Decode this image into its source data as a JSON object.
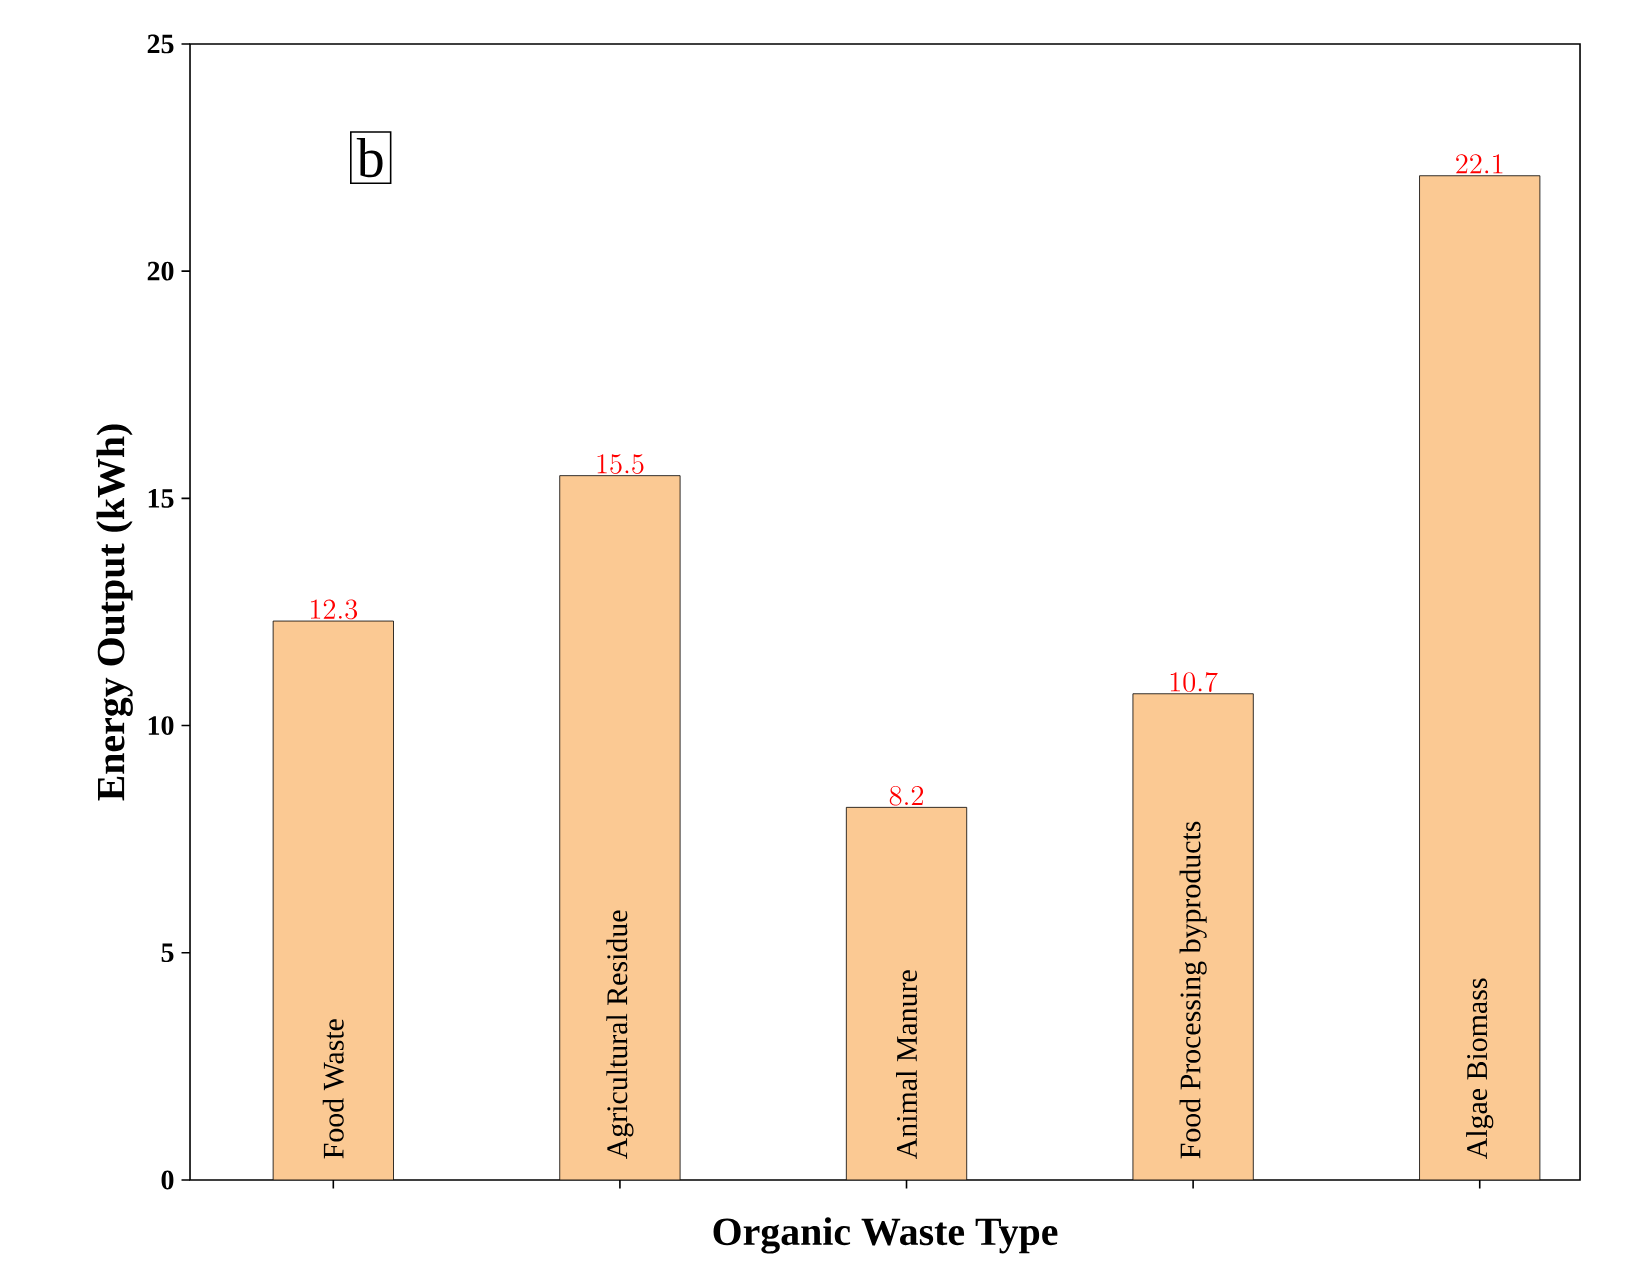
{
  "chart_data": {
    "type": "bar",
    "categories": [
      "Food Waste",
      "Agricultural Residue",
      "Animal Manure",
      "Food Processing byproducts",
      "Algae Biomass"
    ],
    "values": [
      12.3,
      15.5,
      8.2,
      10.7,
      22.1
    ],
    "color": "#fbc993",
    "xlabel": "Organic Waste Type",
    "ylabel": "Energy Output (kWh)",
    "ylim": [
      0,
      25
    ],
    "yticks": [
      0,
      5,
      10,
      15,
      20,
      25
    ],
    "data_labels": true,
    "grid": false,
    "annotations": [
      "b"
    ]
  }
}
